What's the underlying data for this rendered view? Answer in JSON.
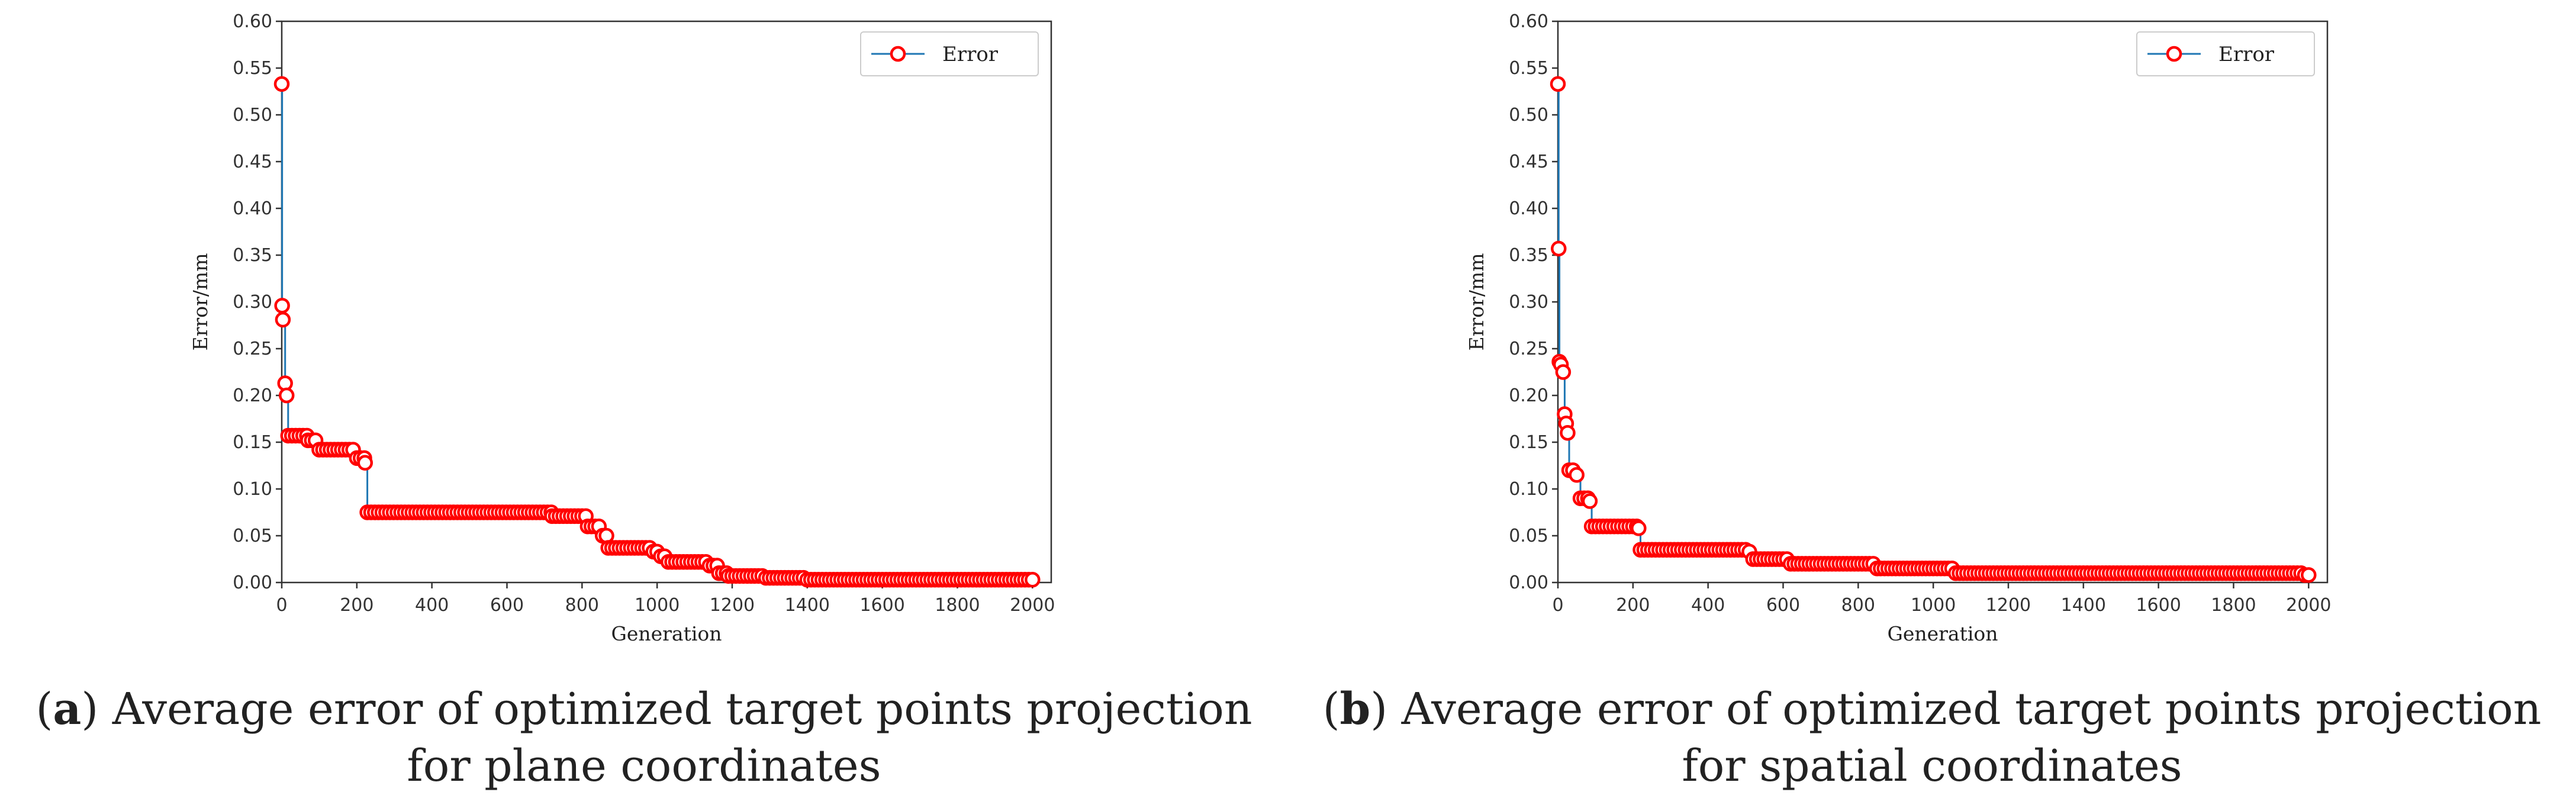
{
  "chart_data": [
    {
      "type": "line",
      "panel_label": "a",
      "caption": "Average error of optimized target points projection for plane coordinates",
      "xlabel": "Generation",
      "ylabel": "Error/mm",
      "xlim": [
        0,
        2050
      ],
      "ylim": [
        0,
        0.6
      ],
      "xticks": [
        0,
        200,
        400,
        600,
        800,
        1000,
        1200,
        1400,
        1600,
        1800,
        2000
      ],
      "yticks": [
        0.0,
        0.05,
        0.1,
        0.15,
        0.2,
        0.25,
        0.3,
        0.35,
        0.4,
        0.45,
        0.5,
        0.55,
        0.6
      ],
      "tick_decimals": 2,
      "legend": "top-right",
      "grid": false,
      "line_color": "#1f77b4",
      "marker_color": "#ff0000",
      "series": [
        {
          "name": "Error",
          "steps": [
            {
              "x": 0,
              "y": 0.533
            },
            {
              "x": 1,
              "y": 0.296
            },
            {
              "x": 3,
              "y": 0.281
            },
            {
              "x": 9,
              "y": 0.213
            },
            {
              "x": 13,
              "y": 0.2
            },
            {
              "x": 17,
              "y": 0.157
            },
            {
              "x": 70,
              "y": 0.152
            },
            {
              "x": 100,
              "y": 0.142
            },
            {
              "x": 200,
              "y": 0.133
            },
            {
              "x": 222,
              "y": 0.128
            },
            {
              "x": 228,
              "y": 0.075
            },
            {
              "x": 720,
              "y": 0.071
            },
            {
              "x": 815,
              "y": 0.06
            },
            {
              "x": 855,
              "y": 0.05
            },
            {
              "x": 870,
              "y": 0.037
            },
            {
              "x": 990,
              "y": 0.033
            },
            {
              "x": 1010,
              "y": 0.028
            },
            {
              "x": 1030,
              "y": 0.022
            },
            {
              "x": 1140,
              "y": 0.018
            },
            {
              "x": 1165,
              "y": 0.01
            },
            {
              "x": 1190,
              "y": 0.007
            },
            {
              "x": 1290,
              "y": 0.005
            },
            {
              "x": 1400,
              "y": 0.003
            }
          ],
          "x_end": 2000
        }
      ]
    },
    {
      "type": "line",
      "panel_label": "b",
      "caption": "Average error of optimized target points projection for spatial coordinates",
      "xlabel": "Generation",
      "ylabel": "Error/mm",
      "xlim": [
        0,
        2050
      ],
      "ylim": [
        0,
        0.6
      ],
      "xticks": [
        0,
        200,
        400,
        600,
        800,
        1000,
        1200,
        1400,
        1600,
        1800,
        2000
      ],
      "yticks": [
        0.0,
        0.05,
        0.1,
        0.15,
        0.2,
        0.25,
        0.3,
        0.35,
        0.4,
        0.45,
        0.5,
        0.55,
        0.6
      ],
      "tick_decimals": 2,
      "legend": "top-right",
      "grid": false,
      "line_color": "#1f77b4",
      "marker_color": "#ff0000",
      "series": [
        {
          "name": "Error",
          "steps": [
            {
              "x": 0,
              "y": 0.533
            },
            {
              "x": 2,
              "y": 0.357
            },
            {
              "x": 4,
              "y": 0.236
            },
            {
              "x": 8,
              "y": 0.233
            },
            {
              "x": 14,
              "y": 0.225
            },
            {
              "x": 18,
              "y": 0.18
            },
            {
              "x": 22,
              "y": 0.17
            },
            {
              "x": 26,
              "y": 0.16
            },
            {
              "x": 30,
              "y": 0.12
            },
            {
              "x": 50,
              "y": 0.115
            },
            {
              "x": 60,
              "y": 0.09
            },
            {
              "x": 85,
              "y": 0.087
            },
            {
              "x": 90,
              "y": 0.06
            },
            {
              "x": 215,
              "y": 0.058
            },
            {
              "x": 220,
              "y": 0.035
            },
            {
              "x": 510,
              "y": 0.033
            },
            {
              "x": 520,
              "y": 0.025
            },
            {
              "x": 620,
              "y": 0.02
            },
            {
              "x": 850,
              "y": 0.015
            },
            {
              "x": 1060,
              "y": 0.01
            },
            {
              "x": 1990,
              "y": 0.008
            }
          ],
          "x_end": 2000
        }
      ]
    }
  ]
}
